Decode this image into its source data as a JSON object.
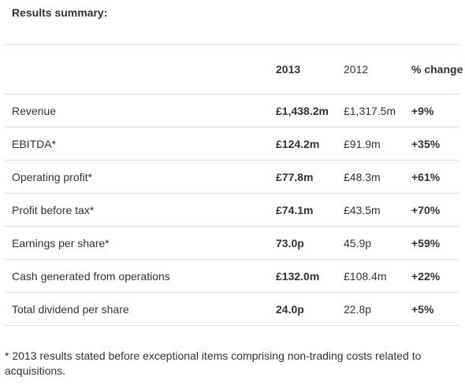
{
  "heading": "Results summary:",
  "table": {
    "headers": {
      "label": "",
      "y2013": "2013",
      "y2012": "2012",
      "change": "% change"
    },
    "rows": [
      {
        "label": "Revenue",
        "y2013": "£1,438.2m",
        "y2012": "£1,317.5m",
        "change": "+9%"
      },
      {
        "label": "EBITDA*",
        "y2013": "£124.2m",
        "y2012": "£91.9m",
        "change": "+35%"
      },
      {
        "label": "Operating profit*",
        "y2013": "£77.8m",
        "y2012": "£48.3m",
        "change": "+61%"
      },
      {
        "label": "Profit before tax*",
        "y2013": "£74.1m",
        "y2012": "£43.5m",
        "change": "+70%"
      },
      {
        "label": "Earnings per share*",
        "y2013": "73.0p",
        "y2012": "45.9p",
        "change": "+59%"
      },
      {
        "label": "Cash generated from operations",
        "y2013": "£132.0m",
        "y2012": "£108.4m",
        "change": "+22%"
      },
      {
        "label": "Total dividend per share",
        "y2013": "24.0p",
        "y2012": "22.8p",
        "change": "+5%"
      }
    ]
  },
  "footnote": "* 2013 results stated before exceptional items comprising non-trading costs related to acquisitions."
}
